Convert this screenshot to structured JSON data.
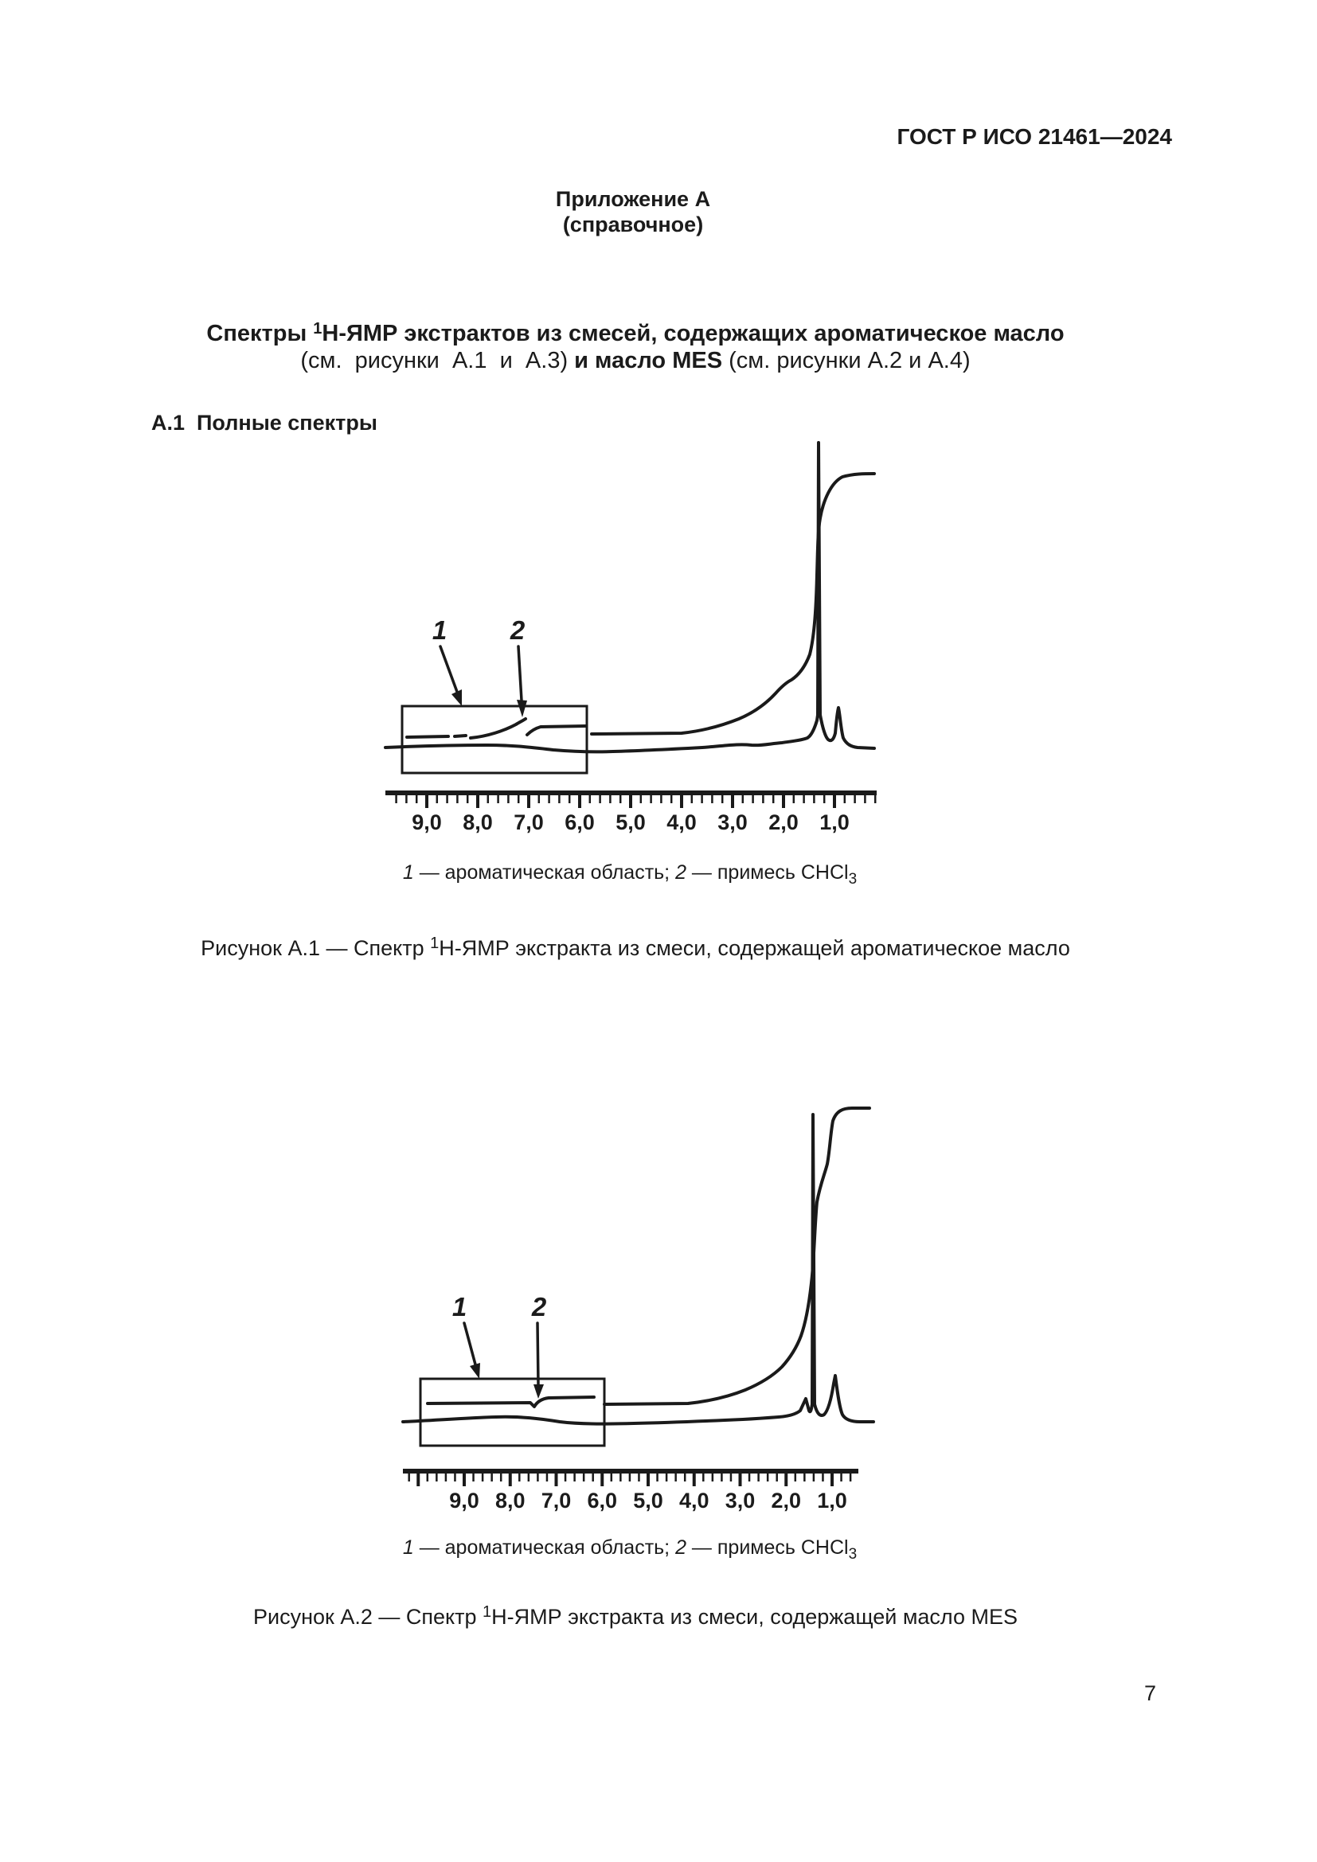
{
  "page": {
    "header": "ГОСТ Р ИСО 21461—2024",
    "page_number": "7"
  },
  "appendix": {
    "title": "Приложение А",
    "subtitle": "(справочное)"
  },
  "main_title": {
    "line1_before_sup": "Спектры ",
    "line1_sup": "1",
    "line1_after_sup": "H-ЯМР экстрактов из смесей, содержащих ароматическое масло",
    "line2_normal1": "(см.  рисунки  А.1  и  А.3) ",
    "line2_bold": "и масло MES",
    "line2_normal2": " (см. рисунки А.2 и А.4)"
  },
  "section": {
    "heading": "А.1  Полные спектры"
  },
  "figure1": {
    "callout1": "1",
    "callout2": "2",
    "axis_tick_labels": [
      "9,0",
      "8,0",
      "7,0",
      "6,0",
      "5,0",
      "4,0",
      "3,0",
      "2,0",
      "1,0"
    ],
    "legend": {
      "item1_num": "1",
      "item1_text": " — ароматическая область; ",
      "item2_num": "2",
      "item2_text": " — примесь CHCl",
      "subscript": "3"
    },
    "caption": {
      "before_sup": "Рисунок А.1 — Спектр ",
      "sup": "1",
      "after_sup": "H-ЯМР экстракта из смеси, содержащей ароматическое масло"
    }
  },
  "figure2": {
    "callout1": "1",
    "callout2": "2",
    "axis_tick_labels": [
      "9,0",
      "8,0",
      "7,0",
      "6,0",
      "5,0",
      "4,0",
      "3,0",
      "2,0",
      "1,0"
    ],
    "legend": {
      "item1_num": "1",
      "item1_text": " — ароматическая область; ",
      "item2_num": "2",
      "item2_text": " — примесь CHCl",
      "subscript": "3"
    },
    "caption": {
      "before_sup": "Рисунок А.2 — Спектр ",
      "sup": "1",
      "after_sup": "H-ЯМР экстракта из смеси, содержащей масло MES"
    }
  },
  "chart_data": [
    {
      "type": "line",
      "title": "Спектр 1H-ЯМР экстракта из смеси, содержащей ароматическое масло (рисунок А.1)",
      "x_ticks": [
        9.0,
        8.0,
        7.0,
        6.0,
        5.0,
        4.0,
        3.0,
        2.0,
        1.0
      ],
      "x_axis_reversed": true,
      "grid": false,
      "series": [
        {
          "name": "спектр",
          "features": [
            {
              "x_ppm": 1.3,
              "desc": "основной узкий пик максимальной интенсивности"
            },
            {
              "x_ppm": 0.9,
              "desc": "малый пик"
            }
          ]
        },
        {
          "name": "интегральная кривая",
          "features": [
            {
              "x_ppm_range": [
                8.3,
                7.3
              ],
              "desc": "слабый подъём в ароматической области (выделена рамкой, метка 1)"
            },
            {
              "x_ppm": 7.25,
              "desc": "ступень от примеси CHCl3 (метка 2)"
            },
            {
              "x_ppm_range": [
                3.0,
                1.2
              ],
              "desc": "основной подъём к плато в правой части"
            }
          ]
        }
      ],
      "annotations": [
        "1 — ароматическая область",
        "2 — примесь CHCl3"
      ]
    },
    {
      "type": "line",
      "title": "Спектр 1H-ЯМР экстракта из смеси, содержащей масло MES (рисунок А.2)",
      "x_ticks": [
        9.0,
        8.0,
        7.0,
        6.0,
        5.0,
        4.0,
        3.0,
        2.0,
        1.0
      ],
      "x_axis_reversed": true,
      "grid": false,
      "series": [
        {
          "name": "спектр",
          "features": [
            {
              "x_ppm": 1.3,
              "desc": "основной узкий пик максимальной интенсивности"
            },
            {
              "x_ppm": 0.9,
              "desc": "малый пик"
            }
          ]
        },
        {
          "name": "интегральная кривая",
          "features": [
            {
              "x_ppm_range": [
                9.8,
                6.0
              ],
              "desc": "практически плоская линия в ароматической области (рамка, метка 1)"
            },
            {
              "x_ppm": 7.25,
              "desc": "малая ступень от примеси CHCl3 (метка 2)"
            },
            {
              "x_ppm_range": [
                3.0,
                1.2
              ],
              "desc": "основной подъём к плато в правой части"
            }
          ]
        }
      ],
      "annotations": [
        "1 — ароматическая область",
        "2 — примесь CHCl3"
      ]
    }
  ]
}
